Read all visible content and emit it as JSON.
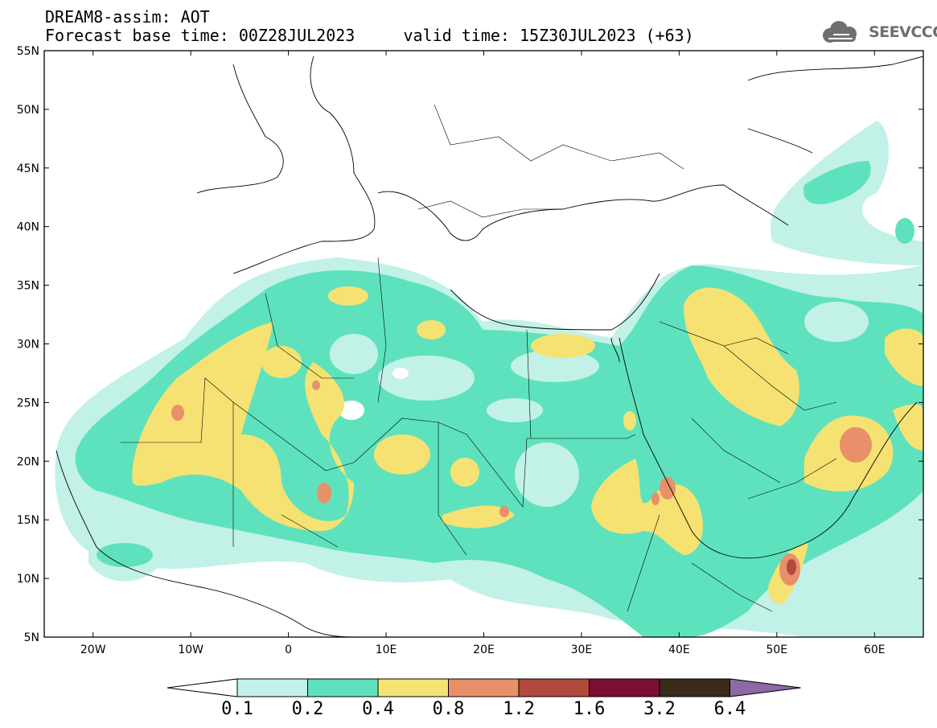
{
  "title": {
    "line1": "DREAM8-assim: AOT",
    "line2": "Forecast base time: 00Z28JUL2023     valid time: 15Z30JUL2023 (+63)"
  },
  "logo": {
    "text": "SEEVCCC",
    "icon": "cloud-icon"
  },
  "axes": {
    "lon_range": [
      -25,
      65
    ],
    "lat_range": [
      5,
      55
    ],
    "y_ticks": [
      "5N",
      "10N",
      "15N",
      "20N",
      "25N",
      "30N",
      "35N",
      "40N",
      "45N",
      "50N",
      "55N"
    ],
    "x_ticks": [
      "20W",
      "10W",
      "0",
      "10E",
      "20E",
      "30E",
      "40E",
      "50E",
      "60E"
    ]
  },
  "variable": "AOT",
  "colorbar": {
    "levels": [
      "0.1",
      "0.2",
      "0.4",
      "0.8",
      "1.2",
      "1.6",
      "3.2",
      "6.4"
    ],
    "colors": [
      "#c2f1e7",
      "#5ee2bd",
      "#f5e272",
      "#e8906a",
      "#b14a3d",
      "#7b0f30",
      "#3a2a1a",
      "#8f68a8"
    ]
  }
}
